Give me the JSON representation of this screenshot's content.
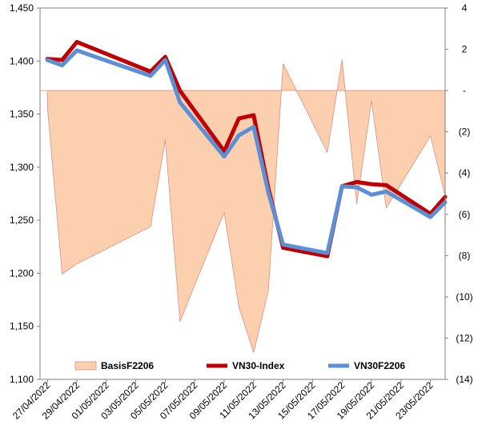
{
  "chart_data": {
    "type": "line",
    "title": "",
    "xlabel": "",
    "ylabel": "",
    "ylabel_right": "",
    "x": [
      "27/04/2022",
      "28/04/2022",
      "29/04/2022",
      "04/05/2022",
      "05/05/2022",
      "06/05/2022",
      "09/05/2022",
      "10/05/2022",
      "11/05/2022",
      "12/05/2022",
      "13/05/2022",
      "16/05/2022",
      "17/05/2022",
      "18/05/2022",
      "19/05/2022",
      "20/05/2022",
      "23/05/2022",
      "24/05/2022"
    ],
    "x_tick_labels": [
      "27/04/2022",
      "29/04/2022",
      "01/05/2022",
      "03/05/2022",
      "05/05/2022",
      "07/05/2022",
      "09/05/2022",
      "11/05/2022",
      "13/05/2022",
      "15/05/2022",
      "17/05/2022",
      "19/05/2022",
      "21/05/2022",
      "23/05/2022"
    ],
    "ylim": [
      1100,
      1450
    ],
    "ylim_right": [
      -14,
      4
    ],
    "y_ticks": [
      "1,100",
      "1,150",
      "1,200",
      "1,250",
      "1,300",
      "1,350",
      "1,400",
      "1,450"
    ],
    "y_right_ticks": [
      "(14)",
      "(12)",
      "(10)",
      "(8)",
      "(6)",
      "(4)",
      "(2)",
      "-",
      "2",
      "4"
    ],
    "series": [
      {
        "name": "BasisF2206",
        "type": "area",
        "axis": "right",
        "color": "#fccfae",
        "edge_color": "#d89088",
        "values": [
          -0.8,
          -8.9,
          -8.4,
          -6.6,
          -2.4,
          -11.2,
          -5.9,
          -10.5,
          -12.7,
          -9.7,
          1.3,
          -3.0,
          1.5,
          -5.5,
          -0.5,
          -5.7,
          -2.2,
          -5.1
        ]
      },
      {
        "name": "VN30-Index",
        "type": "line",
        "axis": "left",
        "color": "#c00000",
        "values": [
          1402,
          1401,
          1418,
          1390,
          1404,
          1372,
          1315,
          1346,
          1349,
          1280,
          1224,
          1216,
          1282,
          1286,
          1284,
          1283,
          1256,
          1272
        ]
      },
      {
        "name": "VN30F2206",
        "type": "line",
        "axis": "left",
        "color": "#5b8fd6",
        "values": [
          1401,
          1396,
          1410,
          1386,
          1401,
          1361,
          1310,
          1330,
          1338,
          1276,
          1227,
          1219,
          1282,
          1281,
          1274,
          1277,
          1253,
          1267
        ]
      }
    ],
    "grid": false,
    "legend": {
      "placement": "bottom-inside",
      "entries": [
        "BasisF2206",
        "VN30-Index",
        "VN30F2206"
      ]
    }
  }
}
